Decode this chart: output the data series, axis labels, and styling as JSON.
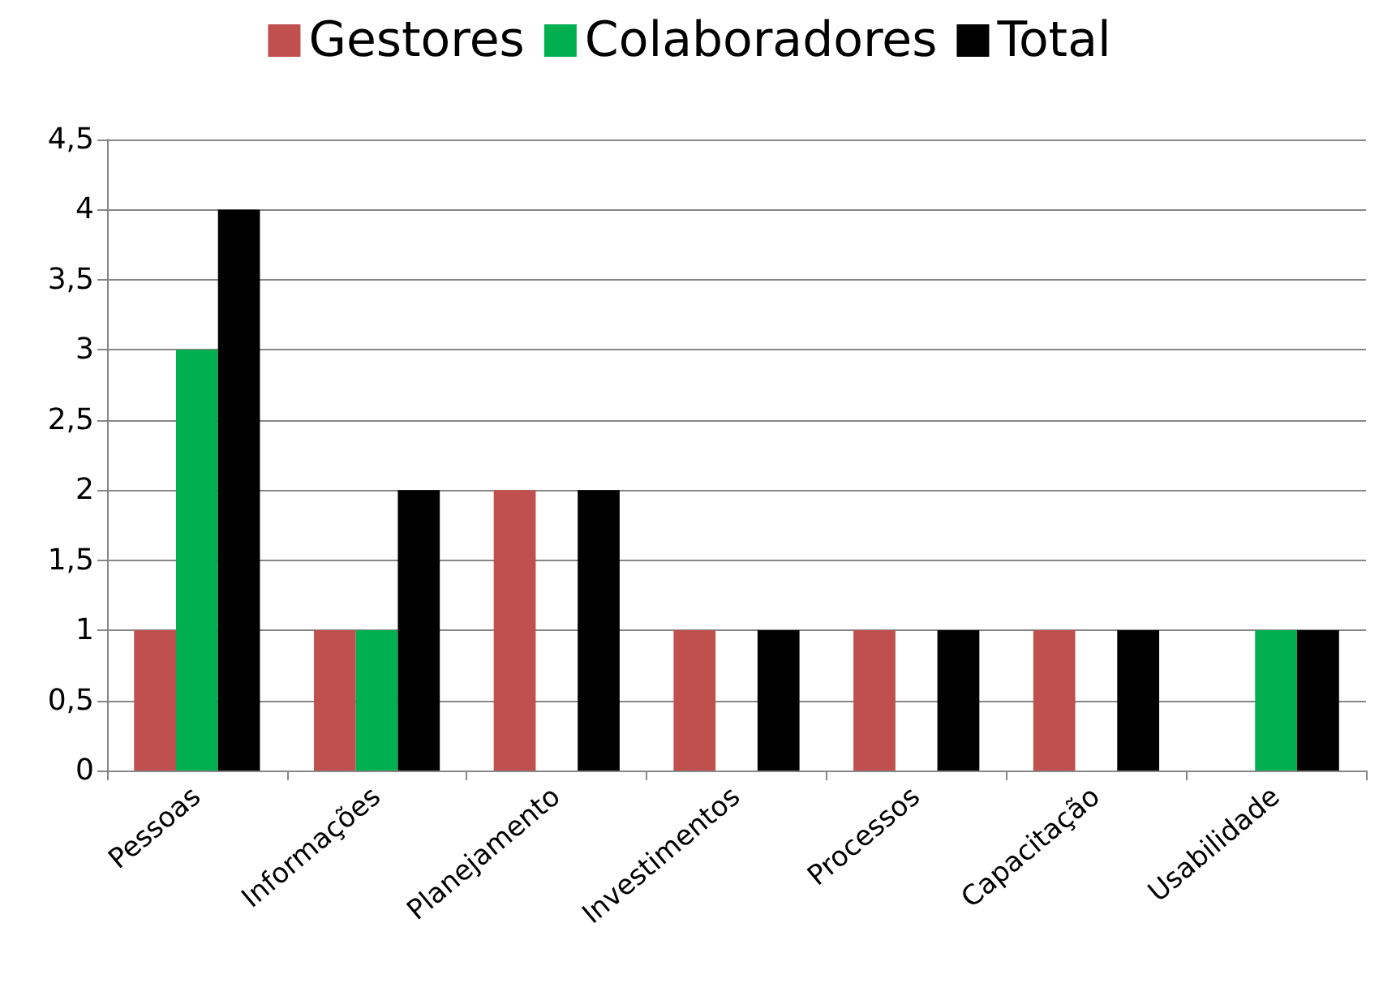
{
  "chart_data": {
    "type": "bar",
    "categories": [
      "Pessoas",
      "Informações",
      "Planejamento",
      "Investimentos",
      "Processos",
      "Capacitação",
      "Usabilidade"
    ],
    "series": [
      {
        "name": "Gestores",
        "color": "#c0504d",
        "values": [
          1,
          1,
          2,
          1,
          1,
          1,
          0
        ]
      },
      {
        "name": "Colaboradores",
        "color": "#00b050",
        "values": [
          3,
          1,
          0,
          0,
          0,
          0,
          1
        ]
      },
      {
        "name": "Total",
        "color": "#000000",
        "values": [
          4,
          2,
          2,
          1,
          1,
          1,
          1
        ]
      }
    ],
    "ylim": [
      0,
      4.5
    ],
    "yticks": [
      0,
      {
        "value": 0.5,
        "label": "0,5"
      },
      1,
      {
        "value": 1.5,
        "label": "1,5"
      },
      2,
      {
        "value": 2.5,
        "label": "2,5"
      },
      3,
      {
        "value": 3.5,
        "label": "3,5"
      },
      4,
      {
        "value": 4.5,
        "label": "4,5"
      }
    ],
    "grid": "y",
    "legend": "top"
  }
}
